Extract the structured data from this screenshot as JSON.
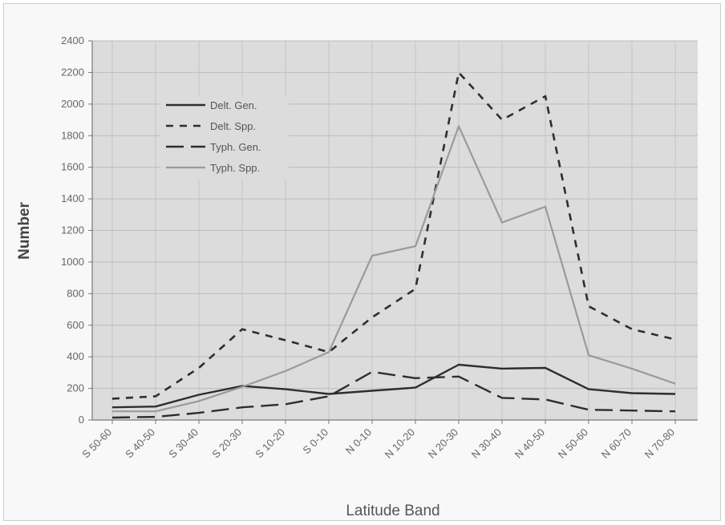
{
  "chart_data": {
    "type": "line",
    "title": "",
    "xlabel": "Latitude Band",
    "ylabel": "Number",
    "ylim": [
      0,
      2400
    ],
    "y_ticks": [
      "0",
      "200",
      "400",
      "600",
      "800",
      "1000",
      "1200",
      "1400",
      "1600",
      "1800",
      "2000",
      "2200",
      "2400"
    ],
    "grid": true,
    "legend_position": "upper-left",
    "categories": [
      "S 50-60",
      "S 40-50",
      "S 30-40",
      "S 20-30",
      "S 10-20",
      "S 0-10",
      "N 0-10",
      "N 10-20",
      "N 20-30",
      "N 30-40",
      "N 40-50",
      "N 50-60",
      "N 60-70",
      "N 70-80"
    ],
    "series": [
      {
        "name": "Delt. Gen.",
        "style": "solid",
        "color": "#2e2e2e",
        "values": [
          80,
          85,
          160,
          215,
          195,
          165,
          185,
          205,
          350,
          325,
          330,
          195,
          170,
          165
        ]
      },
      {
        "name": "Delt. Spp.",
        "style": "dashed",
        "color": "#2e2e2e",
        "values": [
          135,
          150,
          330,
          575,
          505,
          430,
          650,
          830,
          2200,
          1900,
          2050,
          720,
          575,
          510
        ]
      },
      {
        "name": "Typh. Gen.",
        "style": "longdash",
        "color": "#2e2e2e",
        "values": [
          15,
          20,
          45,
          80,
          100,
          150,
          305,
          265,
          275,
          140,
          130,
          65,
          60,
          55
        ]
      },
      {
        "name": "Typh. Spp.",
        "style": "solid-light",
        "color": "#9a9a9a",
        "values": [
          55,
          55,
          120,
          210,
          310,
          430,
          1040,
          1100,
          1860,
          1250,
          1350,
          410,
          325,
          230
        ]
      }
    ]
  }
}
